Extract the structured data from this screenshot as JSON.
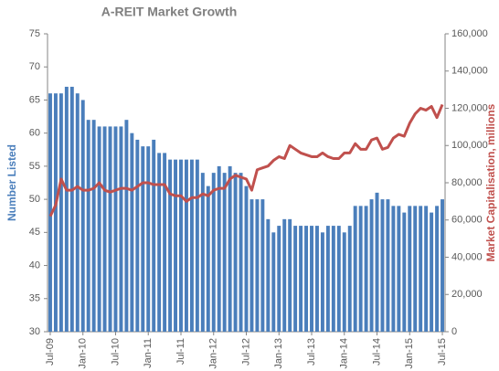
{
  "chart_data": {
    "type": "bar_line",
    "title": "A-REIT Market Growth",
    "y_label": "Number Listed",
    "y2_label": "Market Capitalisation, millions",
    "categories": [
      "Jul-09",
      null,
      null,
      null,
      null,
      null,
      "Jan-10",
      null,
      null,
      null,
      null,
      null,
      "Jul-10",
      null,
      null,
      null,
      null,
      null,
      "Jan-11",
      null,
      null,
      null,
      null,
      null,
      "Jul-11",
      null,
      null,
      null,
      null,
      null,
      "Jan-12",
      null,
      null,
      null,
      null,
      null,
      "Jul-12",
      null,
      null,
      null,
      null,
      null,
      "Jan-13",
      null,
      null,
      null,
      null,
      null,
      "Jul-13",
      null,
      null,
      null,
      null,
      null,
      "Jan-14",
      null,
      null,
      null,
      null,
      null,
      "Jul-14",
      null,
      null,
      null,
      null,
      null,
      "Jan-15",
      null,
      null,
      null,
      null,
      null,
      "Jul-15"
    ],
    "series": [
      {
        "name": "Number Listed",
        "kind": "bar",
        "color": "#4a7ebb",
        "values": [
          66,
          66,
          66,
          67,
          67,
          66,
          65,
          62,
          62,
          61,
          61,
          61,
          61,
          61,
          62,
          60,
          59,
          58,
          58,
          59,
          57,
          57,
          56,
          56,
          56,
          56,
          56,
          56,
          54,
          52,
          54,
          55,
          54,
          55,
          54,
          54,
          52,
          50,
          50,
          50,
          47,
          45,
          46,
          47,
          47,
          46,
          46,
          46,
          46,
          46,
          45,
          46,
          46,
          46,
          45,
          46,
          49,
          49,
          49,
          50,
          51,
          50,
          50,
          49,
          49,
          48,
          49,
          49,
          49,
          49,
          48,
          49,
          50
        ]
      },
      {
        "name": "Market Capitalisation",
        "kind": "line",
        "axis": "y2",
        "color": "#c0504d",
        "values": [
          62000,
          68000,
          82000,
          76000,
          76000,
          78000,
          76000,
          76000,
          77000,
          80000,
          76000,
          75000,
          76000,
          77000,
          77000,
          76000,
          78000,
          80000,
          80000,
          79000,
          79000,
          79000,
          74000,
          73000,
          73000,
          70000,
          72000,
          72000,
          74000,
          73000,
          76000,
          77000,
          77000,
          82000,
          84000,
          83000,
          82000,
          76000,
          87000,
          88000,
          89000,
          92000,
          94000,
          93000,
          100000,
          98000,
          96000,
          95000,
          94000,
          94000,
          96000,
          94000,
          93000,
          93000,
          96000,
          96000,
          101000,
          98000,
          98000,
          103000,
          104000,
          98000,
          99000,
          104000,
          106000,
          105000,
          112000,
          117000,
          120000,
          119000,
          121000,
          115000,
          122000
        ]
      }
    ],
    "ylim": [
      30,
      75
    ],
    "yticks": [
      30,
      35,
      40,
      45,
      50,
      55,
      60,
      65,
      70,
      75
    ],
    "y2lim": [
      0,
      160000
    ],
    "y2ticks": [
      0,
      {
        "value": 20000,
        "label": "20,000"
      },
      {
        "value": 40000,
        "label": "40,000"
      },
      {
        "value": 60000,
        "label": "60,000"
      },
      {
        "value": 80000,
        "label": "80,000"
      },
      {
        "value": 100000,
        "label": "100,000"
      },
      {
        "value": 120000,
        "label": "120,000"
      },
      {
        "value": 140000,
        "label": "140,000"
      },
      {
        "value": 160000,
        "label": "160,000"
      }
    ],
    "grid": false
  }
}
